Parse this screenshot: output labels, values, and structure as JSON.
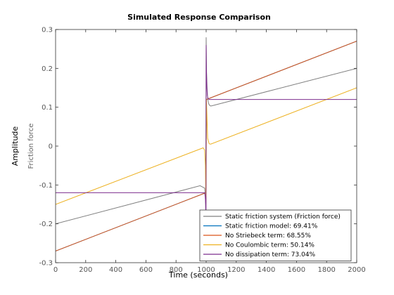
{
  "chart_data": {
    "type": "line",
    "title": "Simulated Response Comparison",
    "xlabel": "Time (seconds)",
    "ylabel": "Amplitude",
    "subplot_ylabel": "Friction force",
    "xlim": [
      0,
      2000
    ],
    "ylim": [
      -0.3,
      0.3
    ],
    "xticks": [
      0,
      200,
      400,
      600,
      800,
      1000,
      1200,
      1400,
      1600,
      1800,
      2000
    ],
    "yticks": [
      -0.3,
      -0.2,
      -0.1,
      0,
      0.1,
      0.2,
      0.3
    ],
    "xtick_labels": [
      "0",
      "200",
      "400",
      "600",
      "800",
      "1000",
      "1200",
      "1400",
      "1600",
      "1800",
      "2000"
    ],
    "ytick_labels": [
      "-0.3",
      "-0.2",
      "-0.1",
      "0",
      "0.1",
      "0.2",
      "0.3"
    ],
    "grid": false,
    "legend_position": "bottom-right",
    "series": [
      {
        "name": "Static friction system (Friction force)",
        "color": "#808080",
        "x": [
          0,
          960,
          990,
          995,
          997,
          1000,
          1003,
          1006,
          1010,
          1015,
          1020,
          1030,
          1040,
          2000
        ],
        "y": [
          -0.2,
          -0.102,
          -0.108,
          -0.13,
          -0.17,
          0.28,
          0.19,
          0.15,
          0.125,
          0.112,
          0.106,
          0.103,
          0.104,
          0.2
        ]
      },
      {
        "name": "Static friction model: 69.41%",
        "color": "#0072BD",
        "x": [
          0,
          998,
          1002,
          2000
        ],
        "y": [
          -0.27,
          -0.12,
          0.12,
          0.27
        ]
      },
      {
        "name": "No Striebeck term: 68.55%",
        "color": "#D95319",
        "x": [
          0,
          998,
          1002,
          2000
        ],
        "y": [
          -0.27,
          -0.12,
          0.12,
          0.27
        ]
      },
      {
        "name": "No Coulombic term: 50.14%",
        "color": "#EDB120",
        "x": [
          0,
          980,
          990,
          995,
          998,
          1000,
          1002,
          1005,
          1010,
          1020,
          1030,
          2000
        ],
        "y": [
          -0.15,
          -0.0045,
          -0.01,
          -0.05,
          -0.15,
          -0.12,
          0.12,
          0.08,
          0.02,
          0.006,
          0.005,
          0.15
        ]
      },
      {
        "name": "No dissipation term: 73.04%",
        "color": "#7E2F8E",
        "x": [
          0,
          990,
          994,
          997,
          999,
          1000,
          1001,
          1003,
          1005,
          1008,
          1012,
          1020,
          2000
        ],
        "y": [
          -0.12,
          -0.12,
          -0.13,
          -0.15,
          -0.25,
          0.26,
          0.22,
          0.18,
          0.15,
          0.13,
          0.123,
          0.12,
          0.12
        ]
      }
    ]
  }
}
